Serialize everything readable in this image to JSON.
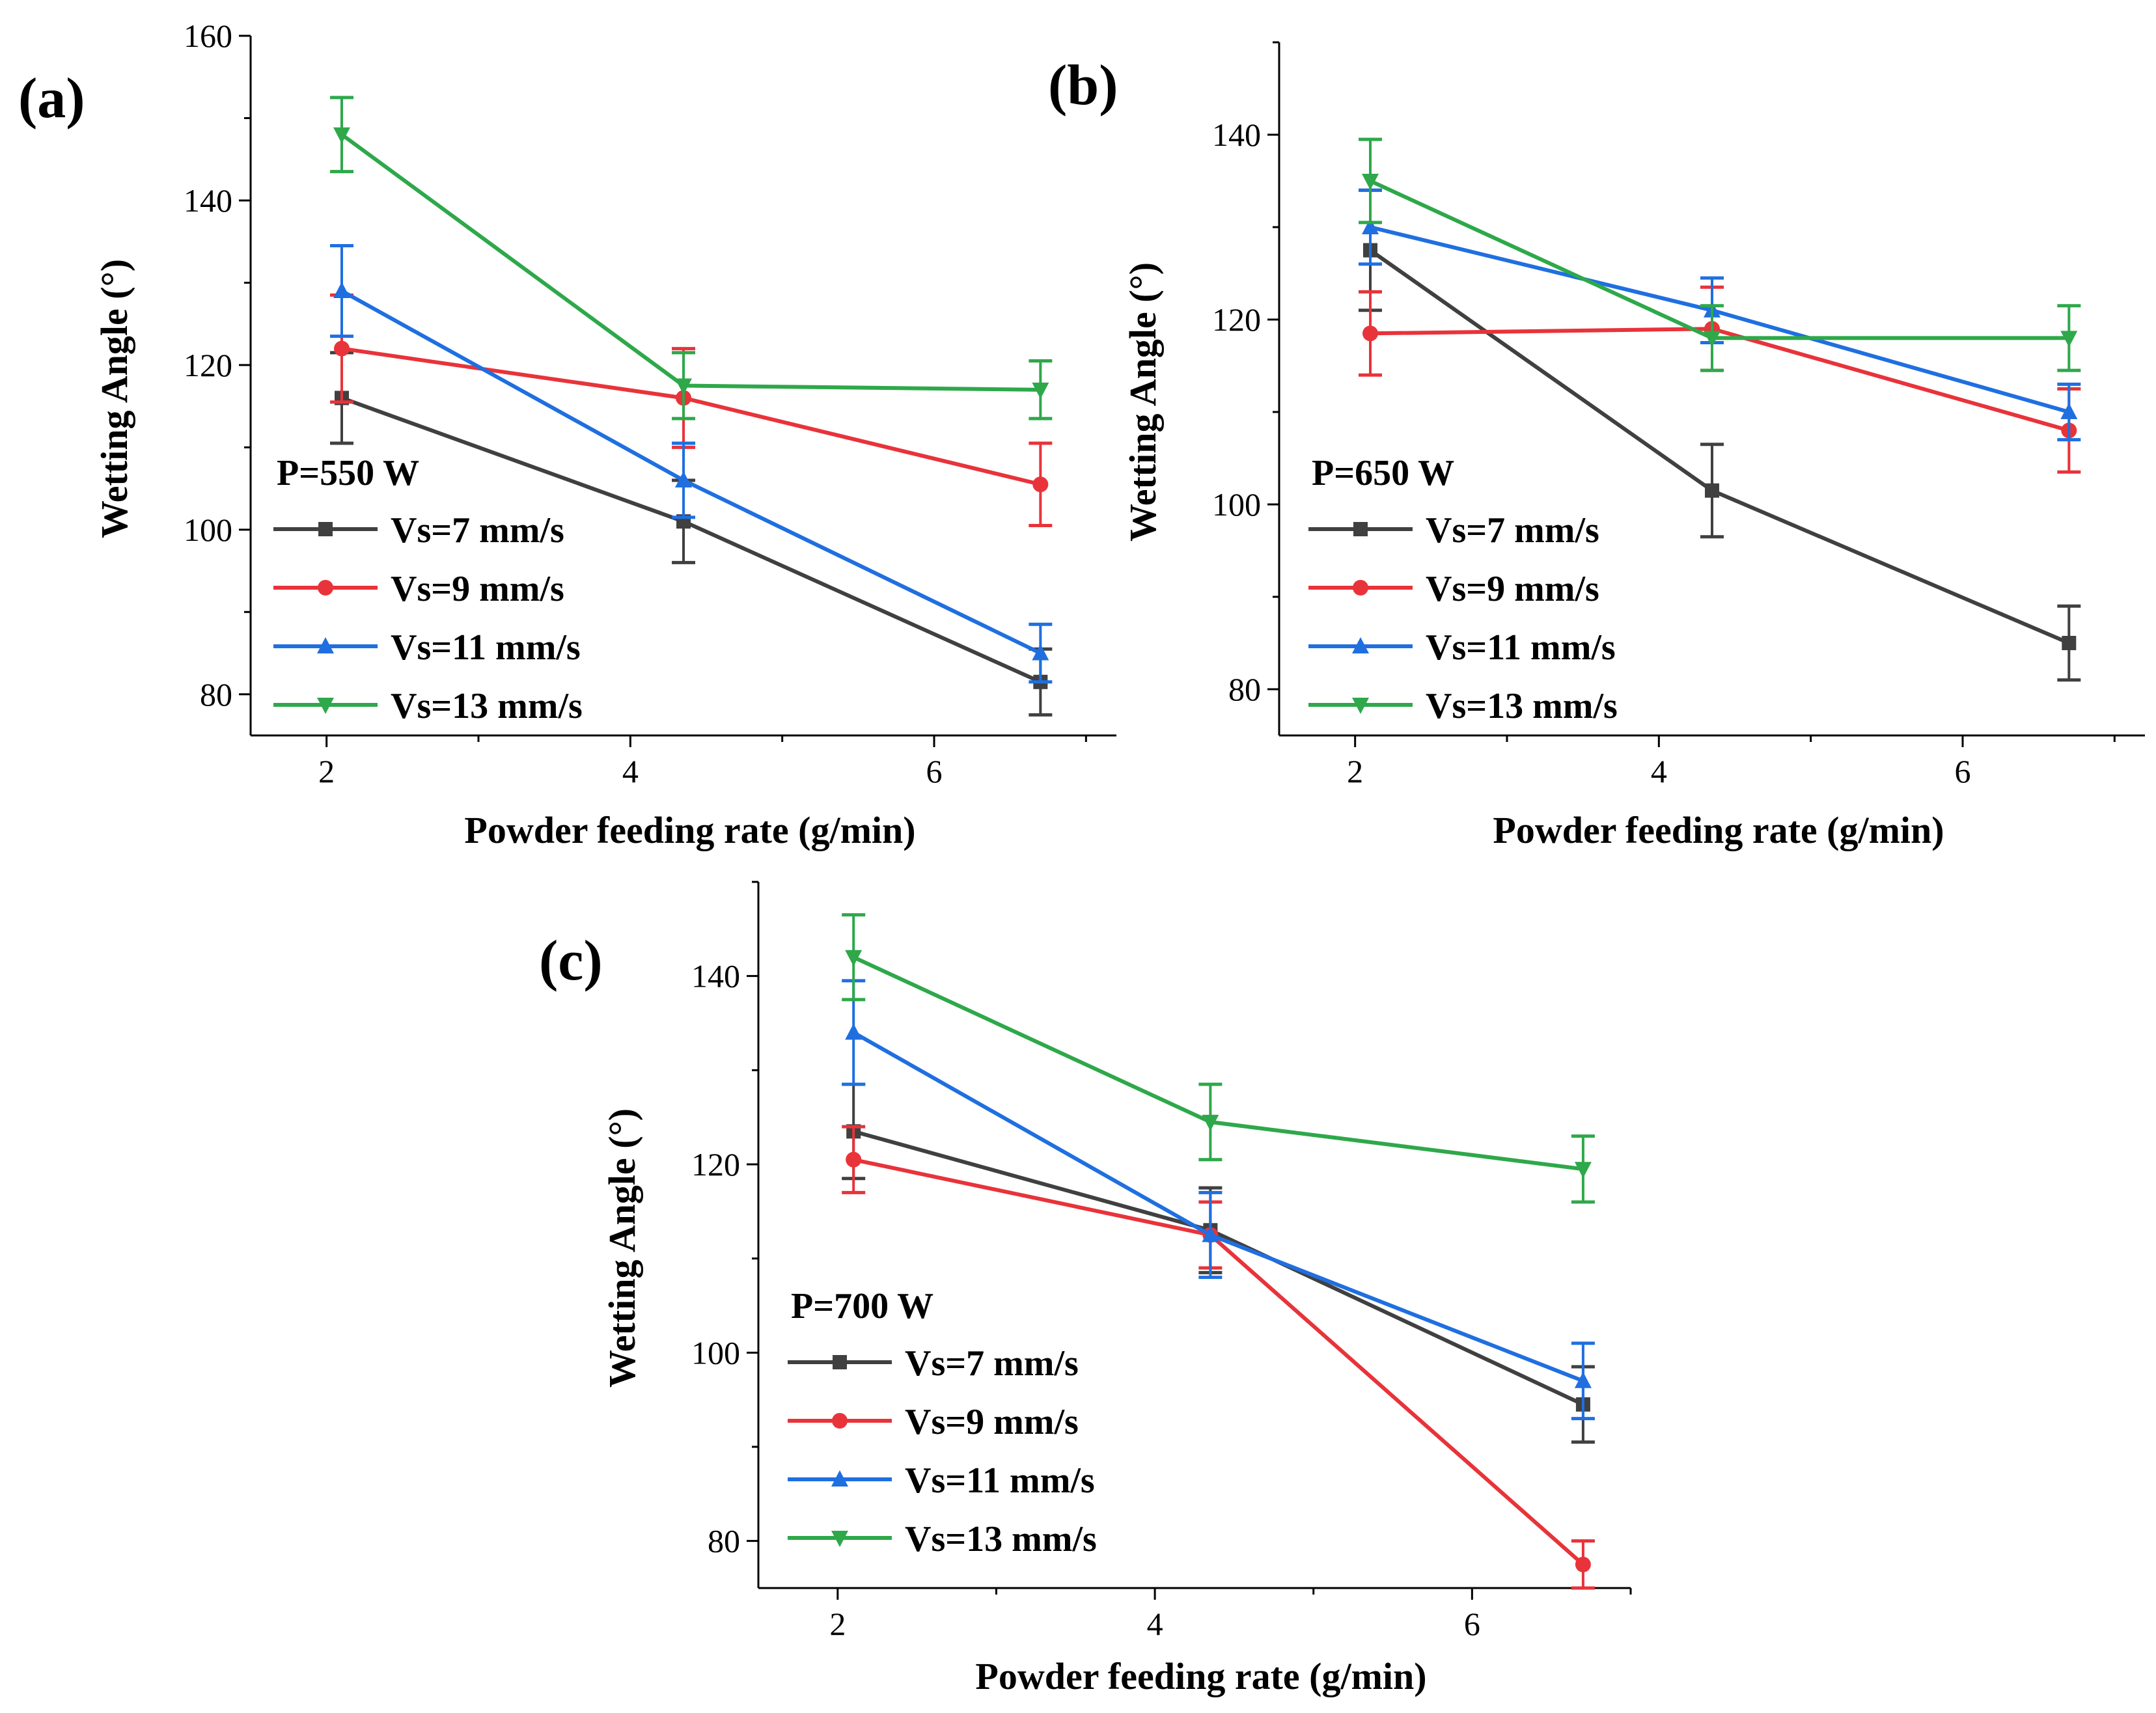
{
  "chart_data": [
    {
      "type": "line",
      "panel_label": "(a)",
      "xlabel": "Powder feeding rate (g/min)",
      "ylabel": "Wetting Angle (°)",
      "xlim": [
        1.5,
        7.2
      ],
      "ylim": [
        75,
        160
      ],
      "xticks": [
        "2",
        "4",
        "6"
      ],
      "yticks": [
        "80",
        "100",
        "120",
        "140",
        "160"
      ],
      "legend_title": "P=550 W",
      "x": [
        2.1,
        4.35,
        6.7
      ],
      "series": [
        {
          "name": "Vs=7 mm/s",
          "color": "#404040",
          "marker": "square",
          "values": [
            116,
            101,
            81.5
          ],
          "errors": [
            5.5,
            5,
            4
          ]
        },
        {
          "name": "Vs=9 mm/s",
          "color": "#e8333a",
          "marker": "circle",
          "values": [
            122,
            116,
            105.5
          ],
          "errors": [
            6.5,
            6,
            5
          ]
        },
        {
          "name": "Vs=11 mm/s",
          "color": "#1f6fe0",
          "marker": "triangle-up",
          "values": [
            129,
            106,
            85
          ],
          "errors": [
            5.5,
            4.5,
            3.5
          ]
        },
        {
          "name": "Vs=13 mm/s",
          "color": "#2ea84a",
          "marker": "triangle-down",
          "values": [
            148,
            117.5,
            117
          ],
          "errors": [
            4.5,
            4,
            3.5
          ]
        }
      ]
    },
    {
      "type": "line",
      "panel_label": "(b)",
      "xlabel": "Powder feeding rate (g/min)",
      "ylabel": "Wetting Angle (°)",
      "xlim": [
        1.5,
        7.2
      ],
      "ylim": [
        75,
        150
      ],
      "xticks": [
        "2",
        "4",
        "6"
      ],
      "yticks": [
        "80",
        "100",
        "120",
        "140"
      ],
      "legend_title": "P=650 W",
      "x": [
        2.1,
        4.35,
        6.7
      ],
      "series": [
        {
          "name": "Vs=7 mm/s",
          "color": "#404040",
          "marker": "square",
          "values": [
            127.5,
            101.5,
            85
          ],
          "errors": [
            6.5,
            5,
            4
          ]
        },
        {
          "name": "Vs=9 mm/s",
          "color": "#e8333a",
          "marker": "circle",
          "values": [
            118.5,
            119,
            108
          ],
          "errors": [
            4.5,
            4.5,
            4.5
          ]
        },
        {
          "name": "Vs=11 mm/s",
          "color": "#1f6fe0",
          "marker": "triangle-up",
          "values": [
            130,
            121,
            110
          ],
          "errors": [
            4,
            3.5,
            3
          ]
        },
        {
          "name": "Vs=13 mm/s",
          "color": "#2ea84a",
          "marker": "triangle-down",
          "values": [
            135,
            118,
            118
          ],
          "errors": [
            4.5,
            3.5,
            3.5
          ]
        }
      ]
    },
    {
      "type": "line",
      "panel_label": "(c)",
      "xlabel": "Powder feeding rate (g/min)",
      "ylabel": "Wetting Angle (°)",
      "xlim": [
        1.5,
        7.0
      ],
      "ylim": [
        75,
        150
      ],
      "xticks": [
        "2",
        "4",
        "6"
      ],
      "yticks": [
        "80",
        "100",
        "120",
        "140"
      ],
      "legend_title": "P=700 W",
      "x": [
        2.1,
        4.35,
        6.7
      ],
      "series": [
        {
          "name": "Vs=7 mm/s",
          "color": "#404040",
          "marker": "square",
          "values": [
            123.5,
            113,
            94.5
          ],
          "errors": [
            5,
            4.5,
            4
          ]
        },
        {
          "name": "Vs=9 mm/s",
          "color": "#e8333a",
          "marker": "circle",
          "values": [
            120.5,
            112.5,
            77.5
          ],
          "errors": [
            3.5,
            3.5,
            2.5
          ]
        },
        {
          "name": "Vs=11 mm/s",
          "color": "#1f6fe0",
          "marker": "triangle-up",
          "values": [
            134,
            112.5,
            97
          ],
          "errors": [
            5.5,
            4.5,
            4
          ]
        },
        {
          "name": "Vs=13 mm/s",
          "color": "#2ea84a",
          "marker": "triangle-down",
          "values": [
            142,
            124.5,
            119.5
          ],
          "errors": [
            4.5,
            4,
            3.5
          ]
        }
      ]
    }
  ]
}
